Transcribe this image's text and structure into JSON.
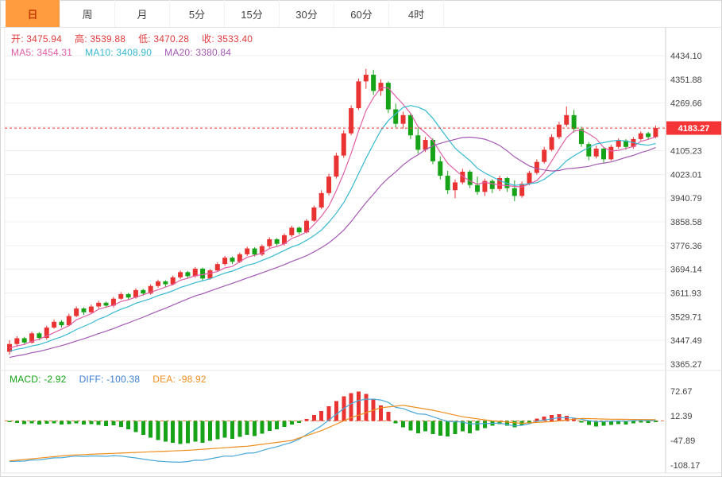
{
  "current_price": "4183.27",
  "colors": {
    "up": "#e93333",
    "down": "#17a317",
    "ma5": "#e05fa8",
    "ma10": "#35b9d2",
    "ma20": "#a55ab4",
    "diff": "#49a8d8",
    "dea": "#ef8e1f",
    "price_line": "#f53535",
    "macd_zero": "#e2793f",
    "ohlc_text": "#e23b3b",
    "macd_text": "#13a413",
    "diff_text": "#3a7fd5",
    "dea_text": "#ef8e1f",
    "selected_tab_bg": "#ff9c3f",
    "selected_tab_text": "#c63c00"
  },
  "tabs": [
    {
      "name": "day",
      "label": "日",
      "selected": true
    },
    {
      "name": "week",
      "label": "周",
      "selected": false
    },
    {
      "name": "month",
      "label": "月",
      "selected": false
    },
    {
      "name": "5min",
      "label": "5分",
      "selected": false
    },
    {
      "name": "15min",
      "label": "15分",
      "selected": false
    },
    {
      "name": "30min",
      "label": "30分",
      "selected": false
    },
    {
      "name": "60min",
      "label": "60分",
      "selected": false
    },
    {
      "name": "4hour",
      "label": "4时",
      "selected": false
    }
  ],
  "info_rows": {
    "ohlc": {
      "items": [
        {
          "name": "open",
          "label": "开:",
          "value": "3475.94"
        },
        {
          "name": "high",
          "label": "高:",
          "value": "3539.88"
        },
        {
          "name": "low",
          "label": "低:",
          "value": "3470.28"
        },
        {
          "name": "close",
          "label": "收:",
          "value": "3533.40"
        }
      ]
    },
    "ma": {
      "items": [
        {
          "name": "ma5",
          "label": "MA5:",
          "value": "3454.31"
        },
        {
          "name": "ma10",
          "label": "MA10:",
          "value": "3408.90"
        },
        {
          "name": "ma20",
          "label": "MA20:",
          "value": "3380.84"
        }
      ]
    },
    "macd": {
      "items": [
        {
          "name": "macd",
          "label": "MACD:",
          "value": "-2.92"
        },
        {
          "name": "diff",
          "label": "DIFF:",
          "value": "-100.38"
        },
        {
          "name": "dea",
          "label": "DEA:",
          "value": "-98.92"
        }
      ]
    }
  },
  "chart_data": {
    "type": "candlestick_with_macd",
    "title": "",
    "price_axis": {
      "top_value": 4434.1,
      "step_value": 82.22,
      "ticks": [
        "4434.10",
        "4351.88",
        "4269.66",
        "",
        "4105.23",
        "4023.01",
        "3940.79",
        "3858.58",
        "3776.36",
        "3694.14",
        "3611.93",
        "3529.71",
        "3447.49",
        "3365.27"
      ]
    },
    "macd_axis": {
      "top_value": 72.67,
      "step_value": 60.28,
      "ticks": [
        "72.67",
        "12.39",
        "-47.89",
        "-108.17"
      ]
    },
    "prehistory_closes": [
      3340,
      3346,
      3352,
      3348,
      3360,
      3366,
      3372,
      3368,
      3380,
      3386,
      3392,
      3388,
      3398,
      3402,
      3408,
      3405,
      3412,
      3418,
      3415,
      3422
    ],
    "ohlc": [
      [
        3408,
        3448,
        3398,
        3435
      ],
      [
        3435,
        3462,
        3425,
        3455
      ],
      [
        3455,
        3460,
        3432,
        3440
      ],
      [
        3440,
        3478,
        3436,
        3472
      ],
      [
        3472,
        3476,
        3448,
        3456
      ],
      [
        3456,
        3498,
        3450,
        3492
      ],
      [
        3492,
        3520,
        3488,
        3512
      ],
      [
        3512,
        3518,
        3492,
        3500
      ],
      [
        3500,
        3540,
        3496,
        3532
      ],
      [
        3532,
        3565,
        3528,
        3558
      ],
      [
        3558,
        3562,
        3536,
        3545
      ],
      [
        3545,
        3572,
        3540,
        3565
      ],
      [
        3565,
        3585,
        3558,
        3578
      ],
      [
        3578,
        3582,
        3560,
        3568
      ],
      [
        3568,
        3598,
        3562,
        3592
      ],
      [
        3592,
        3615,
        3588,
        3608
      ],
      [
        3608,
        3612,
        3588,
        3596
      ],
      [
        3596,
        3628,
        3592,
        3622
      ],
      [
        3622,
        3626,
        3602,
        3610
      ],
      [
        3610,
        3642,
        3606,
        3636
      ],
      [
        3636,
        3658,
        3630,
        3652
      ],
      [
        3652,
        3656,
        3632,
        3642
      ],
      [
        3642,
        3672,
        3638,
        3666
      ],
      [
        3666,
        3690,
        3660,
        3684
      ],
      [
        3684,
        3688,
        3662,
        3670
      ],
      [
        3670,
        3702,
        3665,
        3696
      ],
      [
        3696,
        3700,
        3655,
        3662
      ],
      [
        3662,
        3695,
        3658,
        3690
      ],
      [
        3690,
        3718,
        3685,
        3712
      ],
      [
        3712,
        3740,
        3706,
        3734
      ],
      [
        3734,
        3738,
        3712,
        3720
      ],
      [
        3720,
        3752,
        3715,
        3746
      ],
      [
        3746,
        3772,
        3740,
        3766
      ],
      [
        3766,
        3770,
        3738,
        3745
      ],
      [
        3745,
        3780,
        3740,
        3774
      ],
      [
        3774,
        3805,
        3768,
        3798
      ],
      [
        3798,
        3802,
        3775,
        3782
      ],
      [
        3782,
        3818,
        3776,
        3812
      ],
      [
        3812,
        3845,
        3806,
        3838
      ],
      [
        3838,
        3842,
        3815,
        3822
      ],
      [
        3822,
        3868,
        3818,
        3862
      ],
      [
        3862,
        3915,
        3858,
        3908
      ],
      [
        3908,
        3968,
        3902,
        3958
      ],
      [
        3958,
        4025,
        3950,
        4015
      ],
      [
        4015,
        4098,
        4008,
        4088
      ],
      [
        4088,
        4175,
        4080,
        4165
      ],
      [
        4165,
        4262,
        4158,
        4252
      ],
      [
        4252,
        4355,
        4246,
        4345
      ],
      [
        4345,
        4388,
        4320,
        4368
      ],
      [
        4368,
        4385,
        4298,
        4312
      ],
      [
        4312,
        4352,
        4295,
        4340
      ],
      [
        4340,
        4345,
        4235,
        4248
      ],
      [
        4248,
        4268,
        4185,
        4198
      ],
      [
        4198,
        4240,
        4182,
        4228
      ],
      [
        4228,
        4232,
        4145,
        4158
      ],
      [
        4158,
        4185,
        4095,
        4108
      ],
      [
        4108,
        4152,
        4100,
        4142
      ],
      [
        4142,
        4148,
        4058,
        4068
      ],
      [
        4068,
        4085,
        4005,
        4018
      ],
      [
        4018,
        4035,
        3955,
        3968
      ],
      [
        3968,
        4005,
        3940,
        3995
      ],
      [
        3995,
        4042,
        3988,
        4032
      ],
      [
        4032,
        4038,
        3975,
        3986
      ],
      [
        3986,
        4015,
        3952,
        3962
      ],
      [
        3962,
        4008,
        3948,
        4000
      ],
      [
        4000,
        4006,
        3958,
        3972
      ],
      [
        3972,
        4018,
        3965,
        4010
      ],
      [
        4010,
        4014,
        3962,
        3975
      ],
      [
        3975,
        4002,
        3930,
        3948
      ],
      [
        3948,
        3998,
        3942,
        3990
      ],
      [
        3990,
        4035,
        3985,
        4028
      ],
      [
        4028,
        4075,
        4022,
        4066
      ],
      [
        4066,
        4118,
        4060,
        4108
      ],
      [
        4108,
        4162,
        4102,
        4152
      ],
      [
        4152,
        4205,
        4145,
        4195
      ],
      [
        4195,
        4258,
        4188,
        4228
      ],
      [
        4228,
        4246,
        4168,
        4180
      ],
      [
        4180,
        4188,
        4118,
        4128
      ],
      [
        4128,
        4135,
        4072,
        4085
      ],
      [
        4085,
        4122,
        4078,
        4112
      ],
      [
        4112,
        4118,
        4062,
        4075
      ],
      [
        4075,
        4125,
        4070,
        4118
      ],
      [
        4118,
        4148,
        4112,
        4140
      ],
      [
        4140,
        4145,
        4108,
        4118
      ],
      [
        4118,
        4152,
        4112,
        4145
      ],
      [
        4145,
        4172,
        4140,
        4165
      ],
      [
        4165,
        4170,
        4142,
        4152
      ],
      [
        4152,
        4192,
        4148,
        4183.27
      ]
    ],
    "macd": {
      "hist": [
        -3,
        -5,
        -8,
        -6,
        -9,
        -7,
        -6,
        -9,
        -8,
        -6,
        -9,
        -8,
        -10,
        -13,
        -11,
        -15,
        -21,
        -27,
        -34,
        -41,
        -47,
        -51,
        -54,
        -57,
        -55,
        -51,
        -54,
        -49,
        -45,
        -41,
        -44,
        -39,
        -34,
        -37,
        -31,
        -25,
        -21,
        -15,
        -9,
        -5,
        5,
        14,
        24,
        36,
        48,
        60,
        68,
        72,
        66,
        54,
        38,
        22,
        -6,
        -16,
        -24,
        -30,
        -26,
        -32,
        -36,
        -38,
        -32,
        -26,
        -30,
        -24,
        -18,
        -12,
        -8,
        -12,
        -16,
        -10,
        -4,
        6,
        10,
        14,
        16,
        12,
        6,
        -4,
        -10,
        -14,
        -12,
        -10,
        -8,
        -9,
        -6,
        -4,
        -5,
        -3
      ],
      "dea_keypoints": [
        [
          0,
          -98
        ],
        [
          8,
          -84
        ],
        [
          16,
          -78
        ],
        [
          24,
          -72
        ],
        [
          32,
          -62
        ],
        [
          38,
          -48
        ],
        [
          42,
          -24
        ],
        [
          46,
          8
        ],
        [
          50,
          32
        ],
        [
          53,
          38
        ],
        [
          57,
          26
        ],
        [
          61,
          10
        ],
        [
          65,
          0
        ],
        [
          69,
          -6
        ],
        [
          73,
          -2
        ],
        [
          77,
          6
        ],
        [
          81,
          4
        ],
        [
          87,
          3
        ]
      ]
    }
  }
}
